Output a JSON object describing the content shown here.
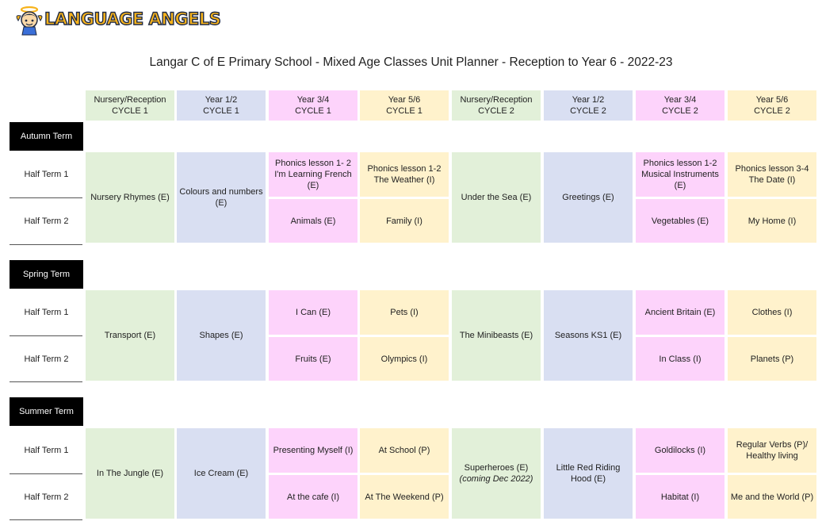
{
  "brand": {
    "logo_text": "LANGUAGE ANGELS"
  },
  "page_title": "Langar C of E Primary School - Mixed Age Classes Unit Planner - Reception to Year 6 - 2022-23",
  "columns": [
    {
      "label": "Nursery/Reception",
      "cycle": "CYCLE 1"
    },
    {
      "label": "Year 1/2",
      "cycle": "CYCLE 1"
    },
    {
      "label": "Year 3/4",
      "cycle": "CYCLE 1"
    },
    {
      "label": "Year 5/6",
      "cycle": "CYCLE 1"
    },
    {
      "label": "Nursery/Reception",
      "cycle": "CYCLE 2"
    },
    {
      "label": "Year 1/2",
      "cycle": "CYCLE 2"
    },
    {
      "label": "Year 3/4",
      "cycle": "CYCLE 2"
    },
    {
      "label": "Year 5/6",
      "cycle": "CYCLE 2"
    }
  ],
  "colors": {
    "nursery": "#e2f0d9",
    "year12": "#d9dff2",
    "year34": "#fdd3fb",
    "year56": "#fff2cc",
    "term_label_bg": "#000000"
  },
  "terms": [
    {
      "name": "Autumn Term",
      "half_terms": [
        "Half Term 1",
        "Half Term 2"
      ],
      "c1_nursery": "Nursery Rhymes (E)",
      "c1_year12": "Colours and numbers (E)",
      "c1_year34_ht1": "Phonics lesson 1- 2 I'm Learning French (E)",
      "c1_year34_ht2": "Animals (E)",
      "c1_year56_ht1": "Phonics lesson 1-2 The Weather (I)",
      "c1_year56_ht2": "Family (I)",
      "c2_nursery": "Under the Sea (E)",
      "c2_nursery_note": "",
      "c2_year12": "Greetings (E)",
      "c2_year34_ht1": "Phonics lesson 1-2 Musical Instruments (E)",
      "c2_year34_ht2": "Vegetables (E)",
      "c2_year56_ht1": "Phonics lesson 3-4 The Date (I)",
      "c2_year56_ht2": "My Home (I)"
    },
    {
      "name": "Spring Term",
      "half_terms": [
        "Half Term 1",
        "Half Term 2"
      ],
      "c1_nursery": "Transport (E)",
      "c1_year12": "Shapes (E)",
      "c1_year34_ht1": "I Can (E)",
      "c1_year34_ht2": "Fruits (E)",
      "c1_year56_ht1": "Pets (I)",
      "c1_year56_ht2": "Olympics (I)",
      "c2_nursery": "The Minibeasts (E)",
      "c2_nursery_note": "",
      "c2_year12": "Seasons KS1 (E)",
      "c2_year34_ht1": "Ancient Britain (E)",
      "c2_year34_ht2": "In Class (I)",
      "c2_year56_ht1": "Clothes (I)",
      "c2_year56_ht2": "Planets (P)"
    },
    {
      "name": "Summer Term",
      "half_terms": [
        "Half Term 1",
        "Half Term 2"
      ],
      "c1_nursery": "In The Jungle (E)",
      "c1_year12": "Ice Cream (E)",
      "c1_year34_ht1": "Presenting Myself (I)",
      "c1_year34_ht2": "At the cafe (I)",
      "c1_year56_ht1": "At School (P)",
      "c1_year56_ht2": "At The Weekend (P)",
      "c2_nursery": "Superheroes (E)",
      "c2_nursery_note": "(coming Dec 2022)",
      "c2_year12": "Little Red Riding Hood (E)",
      "c2_year34_ht1": "Goldilocks (I)",
      "c2_year34_ht2": "Habitat (I)",
      "c2_year56_ht1": "Regular Verbs (P)/ Healthy living",
      "c2_year56_ht2": "Me and the World (P)"
    }
  ]
}
